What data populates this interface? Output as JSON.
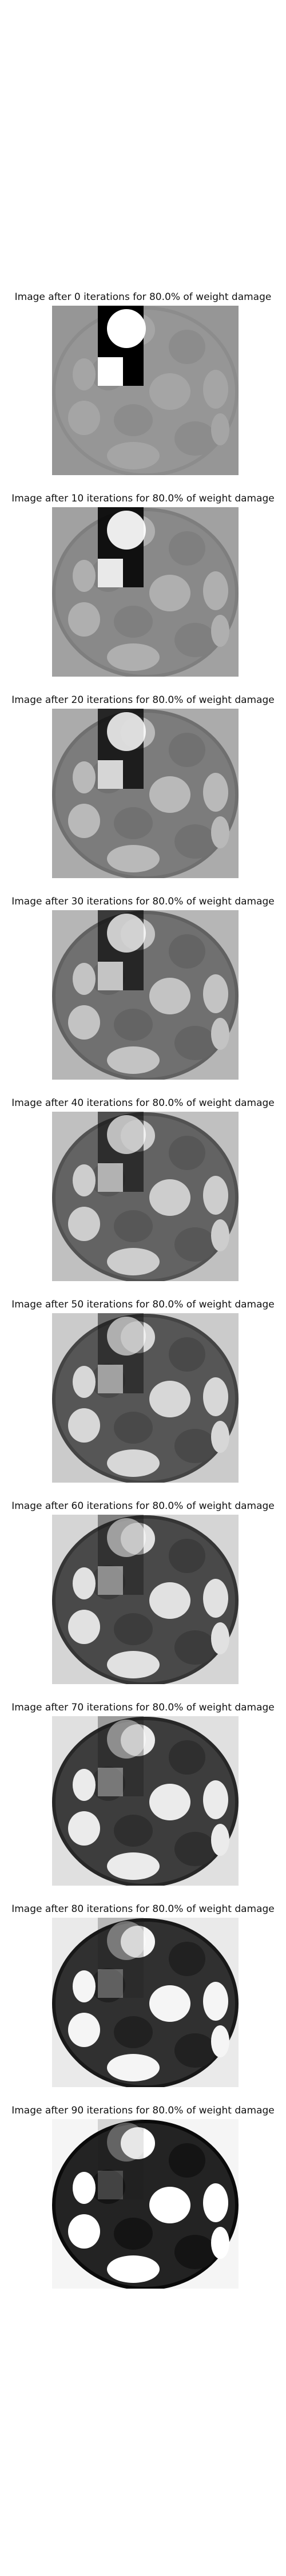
{
  "panels": [
    {
      "title": "Image after 0 iterations for 80.0% of weight damage",
      "progress": 0.0
    },
    {
      "title": "Image after 10 iterations for 80.0% of weight damage",
      "progress": 0.111
    },
    {
      "title": "Image after 20 iterations for 80.0% of weight damage",
      "progress": 0.222
    },
    {
      "title": "Image after 30 iterations for 80.0% of weight damage",
      "progress": 0.333
    },
    {
      "title": "Image after 40 iterations for 80.0% of weight damage",
      "progress": 0.444
    },
    {
      "title": "Image after 50 iterations for 80.0% of weight damage",
      "progress": 0.556
    },
    {
      "title": "Image after 60 iterations for 80.0% of weight damage",
      "progress": 0.667
    },
    {
      "title": "Image after 70 iterations for 80.0% of weight damage",
      "progress": 0.778
    },
    {
      "title": "Image after 80 iterations for 80.0% of weight damage",
      "progress": 0.889
    },
    {
      "title": "Image after 90 iterations for 80.0% of weight damage",
      "progress": 1.0
    }
  ]
}
